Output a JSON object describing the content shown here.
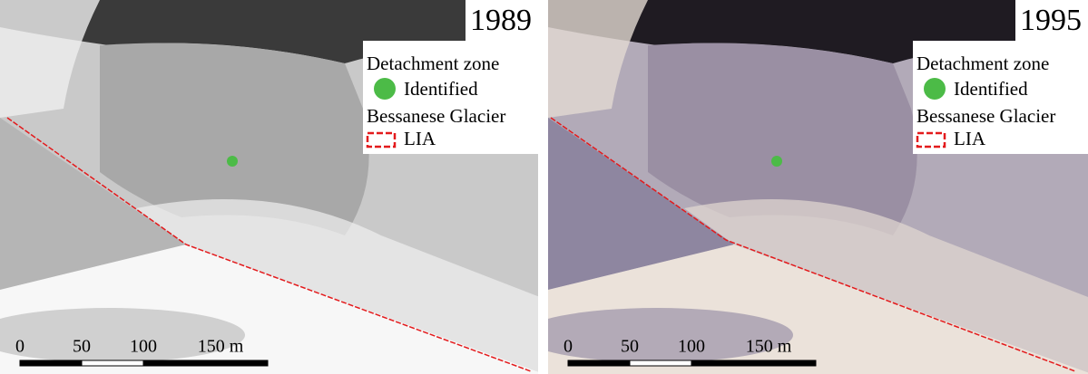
{
  "panels": [
    {
      "year": "1989",
      "legend": {
        "zone_title": "Detachment zone",
        "zone_item": "Identified",
        "glacier_title": "Bessanese Glacier",
        "glacier_item": "LIA"
      },
      "scale_labels": [
        "0",
        "50",
        "100",
        "150 m"
      ]
    },
    {
      "year": "1995",
      "legend": {
        "zone_title": "Detachment zone",
        "zone_item": "Identified",
        "glacier_title": "Bessanese Glacier",
        "glacier_item": "LIA"
      },
      "scale_labels": [
        "0",
        "50",
        "100",
        "150 m"
      ]
    }
  ]
}
